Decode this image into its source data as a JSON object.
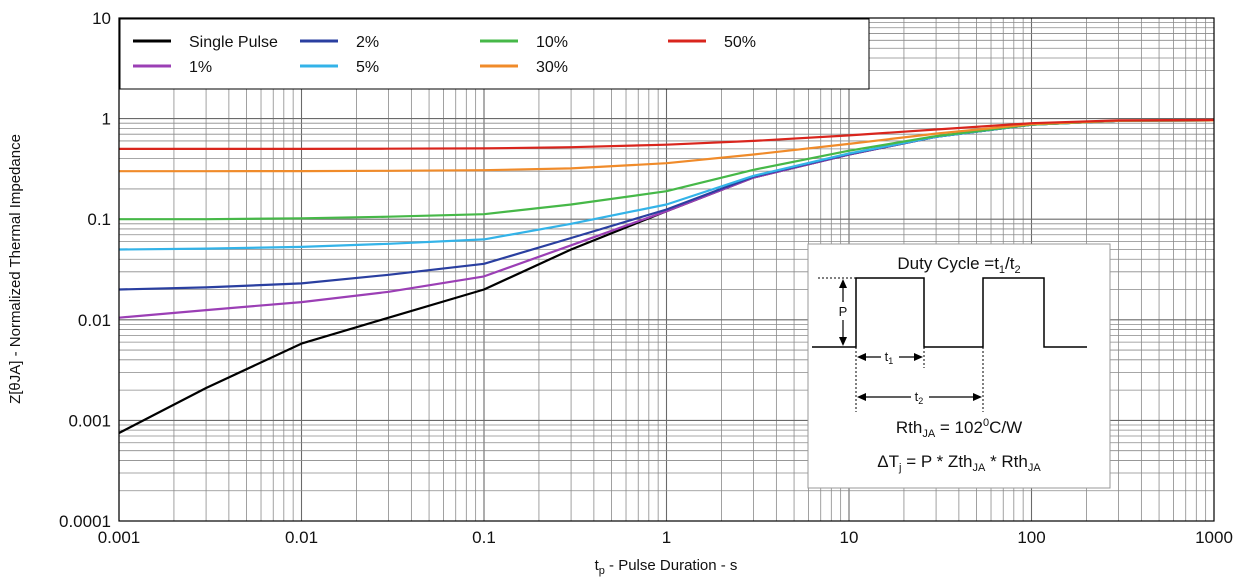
{
  "chart_data": {
    "type": "line",
    "x_scale": "log",
    "y_scale": "log",
    "xlim": [
      0.001,
      1000
    ],
    "ylim": [
      0.0001,
      10
    ],
    "xlabel": {
      "main": "t",
      "sub": "p",
      "rest": " - Pulse Duration - s"
    },
    "ylabel": "Z[θJA] - Normalized Thermal Impedance",
    "x_ticks": [
      {
        "value": 0.001,
        "label": "0.001"
      },
      {
        "value": 0.01,
        "label": "0.01"
      },
      {
        "value": 0.1,
        "label": "0.1"
      },
      {
        "value": 1,
        "label": "1"
      },
      {
        "value": 10,
        "label": "10"
      },
      {
        "value": 100,
        "label": "100"
      },
      {
        "value": 1000,
        "label": "1000"
      }
    ],
    "y_ticks": [
      {
        "value": 10,
        "label": "10"
      },
      {
        "value": 1,
        "label": "1"
      },
      {
        "value": 0.1,
        "label": "0.1"
      },
      {
        "value": 0.01,
        "label": "0.01"
      },
      {
        "value": 0.001,
        "label": "0.001"
      },
      {
        "value": 0.0001,
        "label": "0.0001"
      }
    ],
    "grid": "major and minor (log decades)",
    "legend_position": "top-left",
    "series": [
      {
        "name": "Single Pulse",
        "color": "#000000",
        "x": [
          0.001,
          0.003,
          0.01,
          0.03,
          0.1,
          0.3,
          1,
          3,
          10,
          30,
          100,
          300,
          1000
        ],
        "y": [
          0.00075,
          0.0021,
          0.0058,
          0.0105,
          0.02,
          0.05,
          0.12,
          0.26,
          0.44,
          0.66,
          0.87,
          0.95,
          0.96
        ]
      },
      {
        "name": "1%",
        "color": "#9b3fb5",
        "x": [
          0.001,
          0.003,
          0.01,
          0.03,
          0.1,
          0.3,
          1,
          3,
          10,
          30,
          100,
          300,
          1000
        ],
        "y": [
          0.0105,
          0.0125,
          0.015,
          0.019,
          0.027,
          0.055,
          0.12,
          0.26,
          0.44,
          0.66,
          0.87,
          0.95,
          0.96
        ]
      },
      {
        "name": "2%",
        "color": "#2a3fa0",
        "x": [
          0.001,
          0.003,
          0.01,
          0.03,
          0.1,
          0.3,
          1,
          3,
          10,
          30,
          100,
          300,
          1000
        ],
        "y": [
          0.02,
          0.021,
          0.023,
          0.028,
          0.036,
          0.065,
          0.125,
          0.265,
          0.445,
          0.66,
          0.87,
          0.95,
          0.96
        ]
      },
      {
        "name": "5%",
        "color": "#33b3e8",
        "x": [
          0.001,
          0.003,
          0.01,
          0.03,
          0.1,
          0.3,
          1,
          3,
          10,
          30,
          100,
          300,
          1000
        ],
        "y": [
          0.05,
          0.051,
          0.053,
          0.057,
          0.063,
          0.09,
          0.14,
          0.27,
          0.45,
          0.66,
          0.87,
          0.95,
          0.96
        ]
      },
      {
        "name": "10%",
        "color": "#46b848",
        "x": [
          0.001,
          0.003,
          0.01,
          0.03,
          0.1,
          0.3,
          1,
          3,
          10,
          30,
          100,
          300,
          1000
        ],
        "y": [
          0.1,
          0.1,
          0.102,
          0.106,
          0.112,
          0.14,
          0.19,
          0.31,
          0.48,
          0.67,
          0.87,
          0.95,
          0.96
        ]
      },
      {
        "name": "30%",
        "color": "#f08b2a",
        "x": [
          0.001,
          0.003,
          0.01,
          0.03,
          0.1,
          0.3,
          1,
          3,
          10,
          30,
          100,
          300,
          1000
        ],
        "y": [
          0.3,
          0.3,
          0.301,
          0.303,
          0.307,
          0.32,
          0.36,
          0.44,
          0.56,
          0.71,
          0.88,
          0.95,
          0.96
        ]
      },
      {
        "name": "50%",
        "color": "#d9251d",
        "x": [
          0.001,
          0.003,
          0.01,
          0.03,
          0.1,
          0.3,
          1,
          3,
          10,
          30,
          100,
          300,
          1000
        ],
        "y": [
          0.5,
          0.5,
          0.5,
          0.502,
          0.505,
          0.52,
          0.55,
          0.6,
          0.68,
          0.78,
          0.9,
          0.96,
          0.97
        ]
      }
    ],
    "annotation_box": {
      "position": "lower-right",
      "duty_prefix": "Duty Cycle =t",
      "duty_sub1": "1",
      "duty_slash": "/t",
      "duty_sub2": "2",
      "p_label": "P",
      "t1": {
        "main": "t",
        "sub": "1"
      },
      "t2": {
        "main": "t",
        "sub": "2"
      },
      "rth": {
        "pre": "Rth",
        "sub": "JA",
        "mid": " = 102",
        "sup": "0",
        "post": "C/W"
      },
      "delta": {
        "pre": "ΔT",
        "sub1": "j",
        "mid1": " = P * Zth",
        "sub2": "JA",
        "mid2": " * Rth",
        "sub3": "JA"
      }
    }
  }
}
